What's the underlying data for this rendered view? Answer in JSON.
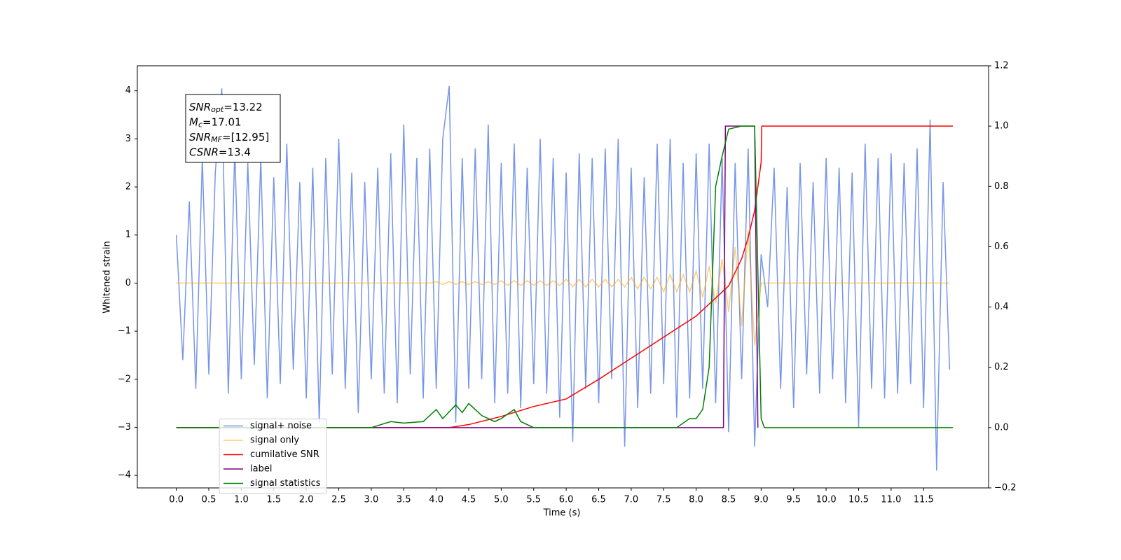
{
  "chart_data": {
    "type": "line",
    "xlabel": "Time (s)",
    "ylabel": "Whitened strain",
    "x": [
      0,
      0.1,
      0.2,
      0.3,
      0.4,
      0.5,
      0.6,
      0.7,
      0.8,
      0.9,
      1,
      1.1,
      1.2,
      1.3,
      1.4,
      1.5,
      1.6,
      1.7,
      1.8,
      1.9,
      2,
      2.1,
      2.2,
      2.3,
      2.4,
      2.5,
      2.6,
      2.7,
      2.8,
      2.9,
      3,
      3.1,
      3.2,
      3.3,
      3.4,
      3.5,
      3.6,
      3.7,
      3.8,
      3.9,
      4,
      4.1,
      4.2,
      4.3,
      4.4,
      4.5,
      4.6,
      4.7,
      4.8,
      4.9,
      5,
      5.1,
      5.2,
      5.3,
      5.4,
      5.5,
      5.6,
      5.7,
      5.8,
      5.9,
      6,
      6.1,
      6.2,
      6.3,
      6.4,
      6.5,
      6.6,
      6.7,
      6.8,
      6.9,
      7,
      7.1,
      7.2,
      7.3,
      7.4,
      7.5,
      7.6,
      7.7,
      7.8,
      7.9,
      8,
      8.1,
      8.2,
      8.3,
      8.4,
      8.5,
      8.6,
      8.7,
      8.8,
      8.9,
      9,
      9.1,
      9.2,
      9.3,
      9.4,
      9.5,
      9.6,
      9.7,
      9.8,
      9.9,
      10,
      10.1,
      10.2,
      10.3,
      10.4,
      10.5,
      10.6,
      10.7,
      10.8,
      10.9,
      11,
      11.1,
      11.2,
      11.3,
      11.4,
      11.5,
      11.6,
      11.7,
      11.8,
      11.9
    ],
    "series": [
      {
        "name": "signal+ noise",
        "color": "#7895e8",
        "alpha": 1,
        "values": [
          1.0,
          -1.6,
          1.7,
          -2.2,
          2.6,
          -1.9,
          2.3,
          4.05,
          -2.3,
          2.8,
          -2.0,
          2.5,
          -1.7,
          2.6,
          -2.4,
          2.2,
          -2.1,
          2.9,
          -1.8,
          2.1,
          -2.4,
          2.4,
          -2.9,
          2.6,
          -1.9,
          3.0,
          -2.2,
          2.3,
          -2.7,
          2.1,
          -2.0,
          2.4,
          -2.3,
          2.7,
          -2.5,
          3.3,
          -1.9,
          2.6,
          -2.4,
          2.8,
          -2.2,
          3.0,
          4.1,
          -2.9,
          2.6,
          -2.2,
          2.8,
          -2.0,
          3.3,
          -2.5,
          2.5,
          -2.3,
          2.9,
          -2.6,
          2.4,
          -2.1,
          3.0,
          -2.3,
          2.6,
          -2.8,
          2.3,
          -3.3,
          2.7,
          -2.2,
          2.6,
          -2.5,
          2.8,
          -2.0,
          3.0,
          -3.4,
          2.4,
          -2.6,
          2.2,
          -2.3,
          2.9,
          -2.1,
          3.0,
          -2.8,
          2.5,
          -2.4,
          2.7,
          -2.2,
          2.9,
          -2.5,
          2.6,
          -3.1,
          2.5,
          -2.0,
          2.8,
          -3.4,
          0.6,
          -0.5,
          2.4,
          -2.2,
          2.0,
          -2.6,
          2.5,
          -1.9,
          2.1,
          -2.3,
          2.6,
          -2.0,
          2.4,
          -2.5,
          2.3,
          -3.0,
          2.9,
          -2.2,
          2.6,
          -2.4,
          2.7,
          -2.3,
          2.5,
          -2.1,
          2.8,
          -2.6,
          3.4,
          -3.9,
          2.1,
          -1.8
        ]
      },
      {
        "name": "signal only",
        "color": "#ffa500",
        "alpha": 0.55,
        "values": [
          0,
          0,
          0,
          0,
          0,
          0,
          0,
          0,
          0,
          0,
          0,
          0,
          0,
          0,
          0,
          0,
          0,
          0,
          0,
          0,
          0,
          0,
          0,
          0,
          0,
          0,
          0,
          0,
          0,
          0,
          0,
          0,
          0,
          0,
          0,
          0,
          0,
          0,
          0,
          0,
          0.03,
          -0.03,
          0.03,
          -0.03,
          0.03,
          -0.03,
          0.03,
          -0.03,
          0.03,
          -0.03,
          0.05,
          -0.05,
          0.05,
          -0.05,
          0.05,
          -0.05,
          0.05,
          -0.05,
          0.05,
          -0.05,
          0.08,
          -0.08,
          0.08,
          -0.08,
          0.08,
          -0.08,
          0.08,
          -0.08,
          0.08,
          -0.08,
          0.12,
          -0.12,
          0.12,
          -0.12,
          0.12,
          -0.18,
          0.18,
          -0.18,
          0.18,
          -0.18,
          0.25,
          -0.3,
          0.35,
          -0.42,
          0.5,
          -0.6,
          0.75,
          -0.9,
          1.1,
          -1.3,
          0,
          0,
          0,
          0,
          0,
          0,
          0,
          0,
          0,
          0,
          0,
          0,
          0,
          0,
          0,
          0,
          0,
          0,
          0,
          0,
          0,
          0,
          0,
          0,
          0,
          0,
          0,
          0,
          0,
          0
        ]
      },
      {
        "name": "cumilative SNR",
        "color": "#ff0000",
        "axis": "y2",
        "alpha": 1,
        "x": [
          0,
          4.2,
          4.5,
          5.0,
          5.5,
          6.0,
          6.5,
          7.0,
          7.5,
          8.0,
          8.3,
          8.5,
          8.7,
          8.8,
          8.9,
          9.0,
          9.01,
          11.5,
          11.95
        ],
        "values": [
          0,
          0,
          0.01,
          0.037,
          0.07,
          0.095,
          0.16,
          0.23,
          0.3,
          0.37,
          0.43,
          0.47,
          0.56,
          0.63,
          0.72,
          0.88,
          1.0,
          1.0,
          1.0
        ]
      },
      {
        "name": "label",
        "color": "#800080",
        "axis": "y2",
        "alpha": 1,
        "x": [
          0,
          8.42,
          8.45,
          8.9,
          8.95
        ],
        "values": [
          0,
          0,
          1,
          1,
          0
        ]
      },
      {
        "name": "signal statistics",
        "color": "#008000",
        "axis": "y2",
        "alpha": 1,
        "x": [
          0,
          3.0,
          3.3,
          3.5,
          3.8,
          4.0,
          4.1,
          4.3,
          4.4,
          4.5,
          4.7,
          4.9,
          5.0,
          5.2,
          5.3,
          5.5,
          7.7,
          7.9,
          8.0,
          8.1,
          8.2,
          8.3,
          8.4,
          8.5,
          8.7,
          8.9,
          9.0,
          9.05,
          11.95
        ],
        "values": [
          0,
          0,
          0.02,
          0.015,
          0.02,
          0.06,
          0.03,
          0.075,
          0.05,
          0.08,
          0.04,
          0.02,
          0.03,
          0.06,
          0.02,
          0,
          0,
          0.03,
          0.03,
          0.06,
          0.2,
          0.8,
          0.9,
          0.99,
          1.0,
          1.0,
          0.03,
          0,
          0
        ]
      }
    ],
    "xlim": [
      -0.6,
      12.5
    ],
    "ylim": [
      -4.26,
      4.52
    ],
    "y2lim": [
      -0.2,
      1.2
    ],
    "xticks": [
      {
        "value": 0,
        "label": "0.0"
      },
      {
        "value": 0.5,
        "label": "0.5"
      },
      {
        "value": 1,
        "label": "1.0"
      },
      {
        "value": 1.5,
        "label": "1.5"
      },
      {
        "value": 2,
        "label": "2.0"
      },
      {
        "value": 2.5,
        "label": "2.5"
      },
      {
        "value": 3,
        "label": "3.0"
      },
      {
        "value": 3.5,
        "label": "3.5"
      },
      {
        "value": 4,
        "label": "4.0"
      },
      {
        "value": 4.5,
        "label": "4.5"
      },
      {
        "value": 5,
        "label": "5.0"
      },
      {
        "value": 5.5,
        "label": "5.5"
      },
      {
        "value": 6,
        "label": "6.0"
      },
      {
        "value": 6.5,
        "label": "6.5"
      },
      {
        "value": 7,
        "label": "7.0"
      },
      {
        "value": 7.5,
        "label": "7.5"
      },
      {
        "value": 8,
        "label": "8.0"
      },
      {
        "value": 8.5,
        "label": "8.5"
      },
      {
        "value": 9,
        "label": "9.0"
      },
      {
        "value": 9.5,
        "label": "9.5"
      },
      {
        "value": 10,
        "label": "10.0"
      },
      {
        "value": 10.5,
        "label": "10.5"
      },
      {
        "value": 11,
        "label": "11.0"
      },
      {
        "value": 11.5,
        "label": "11.5"
      }
    ],
    "yticks": [
      {
        "value": -4,
        "label": "−4"
      },
      {
        "value": -3,
        "label": "−3"
      },
      {
        "value": -2,
        "label": "−2"
      },
      {
        "value": -1,
        "label": "−1"
      },
      0,
      1,
      2,
      3,
      4
    ],
    "y2ticks": [
      {
        "value": -0.2,
        "label": "−0.2"
      },
      {
        "value": 0,
        "label": "0.0"
      },
      {
        "value": 0.2,
        "label": "0.2"
      },
      {
        "value": 0.4,
        "label": "0.4"
      },
      {
        "value": 0.6,
        "label": "0.6"
      },
      {
        "value": 0.8,
        "label": "0.8"
      },
      {
        "value": 1.0,
        "label": "1.0"
      },
      {
        "value": 1.2,
        "label": "1.2"
      }
    ],
    "grid": false,
    "legend": "lower left",
    "annotation": [
      {
        "main": "SNR",
        "sub": "opt",
        "rest": "=13.22"
      },
      {
        "main": "M",
        "sub": "c",
        "rest": "=17.01"
      },
      {
        "main": "SNR",
        "sub": "MF",
        "rest": "=[12.95]"
      },
      {
        "main": "CSNR",
        "sub": null,
        "rest": "=13.4"
      }
    ]
  }
}
